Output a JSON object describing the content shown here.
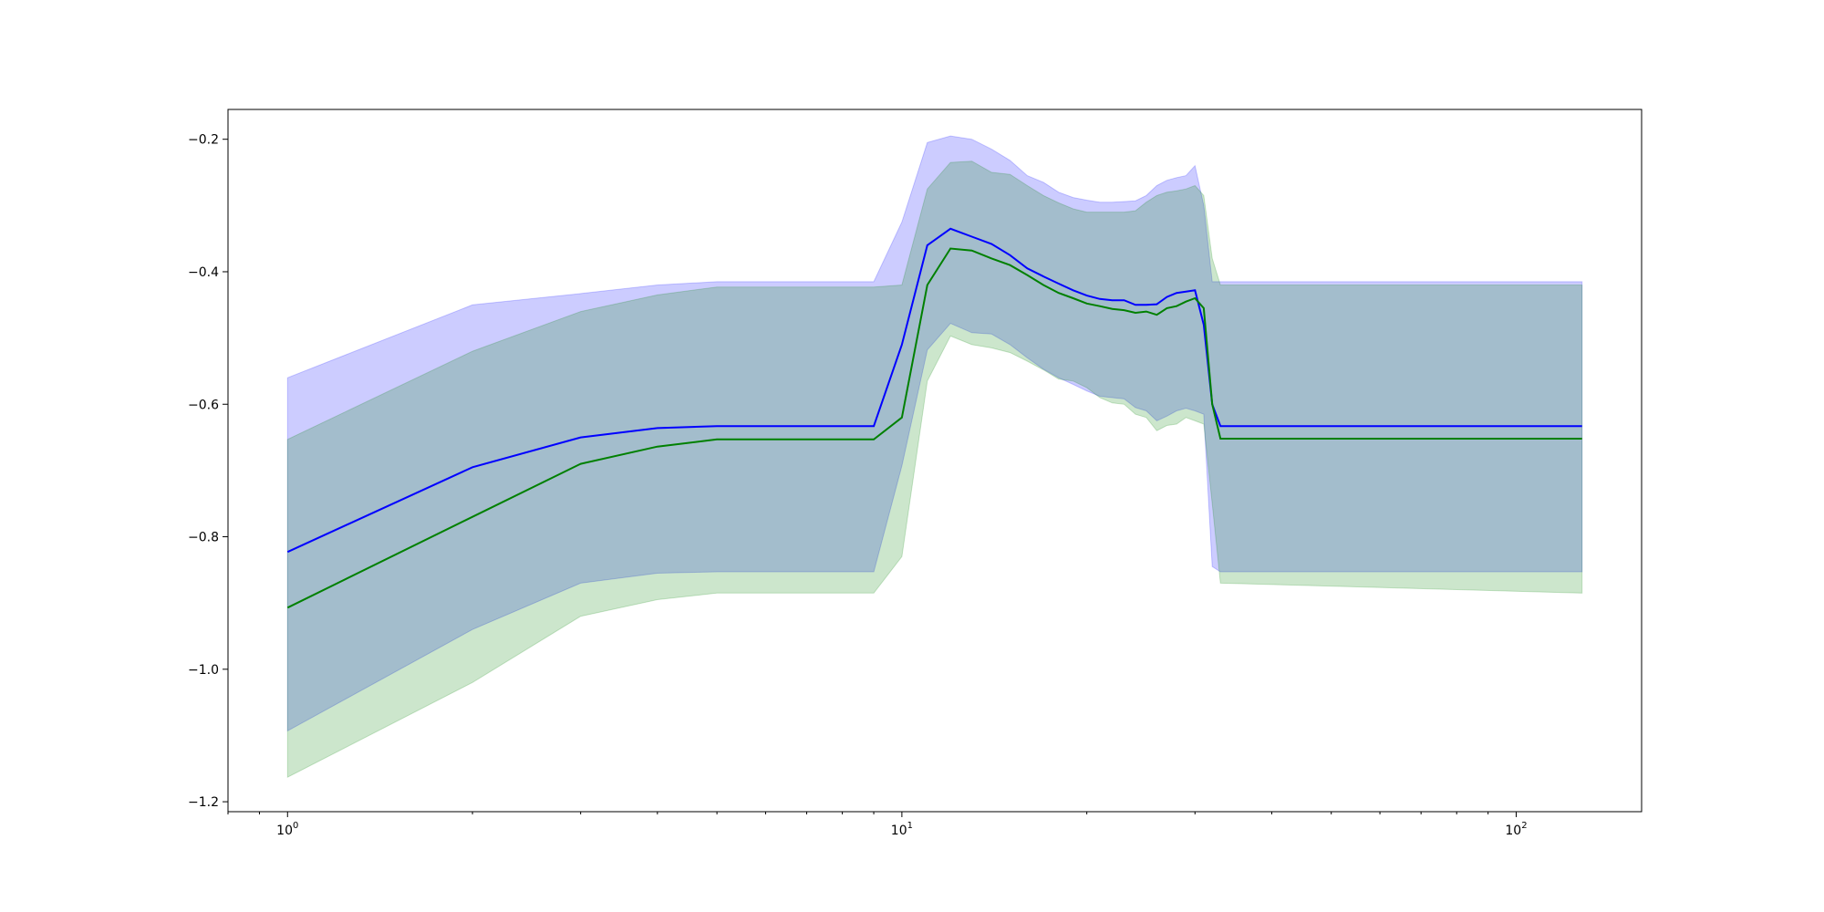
{
  "chart_data": {
    "type": "line",
    "title": "",
    "xlabel": "",
    "ylabel": "",
    "xscale": "log",
    "xlim": [
      0.8,
      160
    ],
    "ylim": [
      -1.215,
      -0.155
    ],
    "grid": false,
    "legend": "none",
    "x_ticks": [
      {
        "value": 1,
        "base": "10",
        "exp": "0"
      },
      {
        "value": 10,
        "base": "10",
        "exp": "1"
      },
      {
        "value": 100,
        "base": "10",
        "exp": "2"
      }
    ],
    "y_ticks": [
      {
        "value": -0.2,
        "label": "−0.2"
      },
      {
        "value": -0.4,
        "label": "−0.4"
      },
      {
        "value": -0.6,
        "label": "−0.6"
      },
      {
        "value": -0.8,
        "label": "−0.8"
      },
      {
        "value": -1.0,
        "label": "−1.0"
      },
      {
        "value": -1.2,
        "label": "−1.2"
      }
    ],
    "series": [
      {
        "color": "#0000ff",
        "band_color": "#0000ff",
        "band_opacity": 0.2,
        "x": [
          1,
          2,
          3,
          4,
          5,
          9,
          10,
          11,
          12,
          13,
          14,
          15,
          16,
          17,
          18,
          19,
          20,
          21,
          22,
          23,
          24,
          25,
          26,
          27,
          28,
          29,
          30,
          31,
          32,
          33,
          128
        ],
        "y": [
          -0.823,
          -0.695,
          -0.65,
          -0.636,
          -0.633,
          -0.633,
          -0.51,
          -0.36,
          -0.335,
          -0.347,
          -0.358,
          -0.375,
          -0.395,
          -0.407,
          -0.418,
          -0.428,
          -0.436,
          -0.441,
          -0.443,
          -0.443,
          -0.45,
          -0.45,
          -0.449,
          -0.438,
          -0.432,
          -0.43,
          -0.428,
          -0.48,
          -0.6,
          -0.633,
          -0.633
        ],
        "upper": [
          -0.56,
          -0.45,
          -0.433,
          -0.42,
          -0.415,
          -0.415,
          -0.325,
          -0.205,
          -0.195,
          -0.2,
          -0.215,
          -0.232,
          -0.255,
          -0.265,
          -0.28,
          -0.288,
          -0.292,
          -0.295,
          -0.295,
          -0.294,
          -0.293,
          -0.285,
          -0.27,
          -0.262,
          -0.258,
          -0.255,
          -0.24,
          -0.3,
          -0.415,
          -0.415,
          -0.415
        ],
        "lower": [
          -1.093,
          -0.94,
          -0.87,
          -0.855,
          -0.853,
          -0.853,
          -0.693,
          -0.518,
          -0.478,
          -0.492,
          -0.494,
          -0.51,
          -0.53,
          -0.547,
          -0.56,
          -0.57,
          -0.58,
          -0.588,
          -0.59,
          -0.592,
          -0.605,
          -0.61,
          -0.625,
          -0.618,
          -0.61,
          -0.606,
          -0.61,
          -0.615,
          -0.845,
          -0.853,
          -0.853
        ]
      },
      {
        "color": "#008000",
        "band_color": "#008000",
        "band_opacity": 0.2,
        "x": [
          1,
          2,
          3,
          4,
          5,
          9,
          10,
          11,
          12,
          13,
          14,
          15,
          16,
          17,
          18,
          19,
          20,
          21,
          22,
          23,
          24,
          25,
          26,
          27,
          28,
          29,
          30,
          31,
          32,
          33,
          128
        ],
        "y": [
          -0.907,
          -0.77,
          -0.69,
          -0.664,
          -0.653,
          -0.653,
          -0.62,
          -0.42,
          -0.365,
          -0.368,
          -0.38,
          -0.39,
          -0.405,
          -0.42,
          -0.432,
          -0.44,
          -0.448,
          -0.452,
          -0.456,
          -0.458,
          -0.462,
          -0.46,
          -0.465,
          -0.455,
          -0.452,
          -0.445,
          -0.44,
          -0.455,
          -0.6,
          -0.652,
          -0.652
        ],
        "upper": [
          -0.653,
          -0.52,
          -0.46,
          -0.435,
          -0.423,
          -0.423,
          -0.42,
          -0.275,
          -0.235,
          -0.233,
          -0.25,
          -0.253,
          -0.27,
          -0.285,
          -0.296,
          -0.305,
          -0.31,
          -0.31,
          -0.31,
          -0.31,
          -0.308,
          -0.295,
          -0.285,
          -0.28,
          -0.278,
          -0.275,
          -0.27,
          -0.285,
          -0.38,
          -0.42,
          -0.42
        ],
        "lower": [
          -1.163,
          -1.02,
          -0.92,
          -0.895,
          -0.885,
          -0.885,
          -0.83,
          -0.565,
          -0.497,
          -0.51,
          -0.515,
          -0.522,
          -0.535,
          -0.548,
          -0.562,
          -0.565,
          -0.575,
          -0.59,
          -0.598,
          -0.6,
          -0.615,
          -0.62,
          -0.64,
          -0.632,
          -0.63,
          -0.62,
          -0.625,
          -0.63,
          -0.75,
          -0.87,
          -0.885
        ]
      }
    ]
  }
}
